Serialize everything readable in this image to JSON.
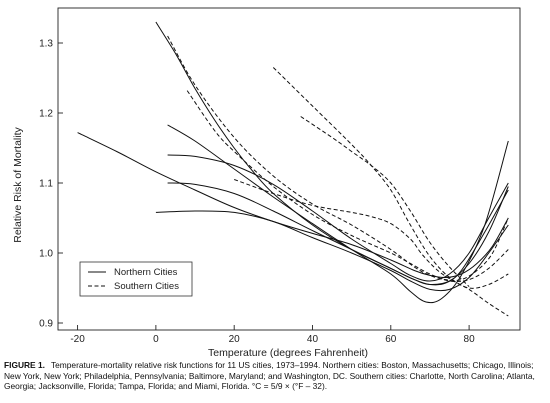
{
  "chart_data": {
    "type": "line",
    "xlabel": "Temperature (degrees Fahrenheit)",
    "ylabel": "Relative Risk of Mortality",
    "xlim": [
      -25,
      93
    ],
    "ylim": [
      0.89,
      1.35
    ],
    "xticks": [
      -20,
      0,
      20,
      40,
      60,
      80
    ],
    "yticks": [
      0.9,
      1.0,
      1.1,
      1.2,
      1.3
    ],
    "grid": false,
    "legend": {
      "placement": "lower-left",
      "entries": [
        {
          "label": "Northern Cities",
          "style": "solid"
        },
        {
          "label": "Southern Cities",
          "style": "dashed"
        }
      ]
    },
    "series": [
      {
        "group": "Northern Cities",
        "x": [
          -20,
          -10,
          0,
          10,
          20,
          30,
          40,
          50,
          60,
          66,
          70,
          74,
          78,
          82,
          86,
          90
        ],
        "y": [
          1.172,
          1.145,
          1.116,
          1.09,
          1.065,
          1.045,
          1.028,
          1.012,
          0.99,
          0.975,
          0.968,
          0.965,
          0.97,
          0.985,
          1.01,
          1.05
        ]
      },
      {
        "group": "Northern Cities",
        "x": [
          0,
          5,
          10,
          15,
          20,
          25,
          30,
          40,
          50,
          60,
          66,
          70,
          74,
          78,
          84,
          90
        ],
        "y": [
          1.33,
          1.285,
          1.235,
          1.19,
          1.15,
          1.115,
          1.085,
          1.04,
          1.005,
          0.978,
          0.962,
          0.955,
          0.957,
          0.975,
          1.03,
          1.09
        ]
      },
      {
        "group": "Northern Cities",
        "x": [
          3,
          10,
          20,
          30,
          40,
          50,
          60,
          65,
          70,
          75,
          80,
          85,
          90
        ],
        "y": [
          1.14,
          1.138,
          1.125,
          1.098,
          1.06,
          1.02,
          0.985,
          0.968,
          0.96,
          0.97,
          1.0,
          1.05,
          1.1
        ]
      },
      {
        "group": "Northern Cities",
        "x": [
          3,
          10,
          20,
          30,
          40,
          50,
          60,
          66,
          70,
          75,
          80,
          85,
          90
        ],
        "y": [
          1.1,
          1.098,
          1.085,
          1.06,
          1.032,
          1.005,
          0.978,
          0.962,
          0.955,
          0.96,
          0.985,
          1.03,
          1.095
        ]
      },
      {
        "group": "Northern Cities",
        "x": [
          0,
          10,
          20,
          30,
          40,
          50,
          60,
          65,
          70,
          75,
          80,
          85,
          90
        ],
        "y": [
          1.058,
          1.06,
          1.058,
          1.045,
          1.022,
          1.0,
          0.975,
          0.96,
          0.948,
          0.948,
          0.965,
          1.0,
          1.04
        ]
      },
      {
        "group": "Northern Cities",
        "x": [
          3,
          10,
          20,
          30,
          40,
          50,
          60,
          65,
          69,
          73,
          78,
          84,
          90
        ],
        "y": [
          1.183,
          1.16,
          1.12,
          1.08,
          1.042,
          1.005,
          0.97,
          0.945,
          0.93,
          0.935,
          0.968,
          1.04,
          1.16
        ]
      },
      {
        "group": "Southern Cities",
        "x": [
          3,
          10,
          20,
          30,
          40,
          50,
          60,
          66,
          70,
          74,
          78,
          82,
          86,
          90
        ],
        "y": [
          1.31,
          1.24,
          1.165,
          1.11,
          1.07,
          1.04,
          1.005,
          0.98,
          0.968,
          0.962,
          0.962,
          0.975,
          1.0,
          1.05
        ]
      },
      {
        "group": "Southern Cities",
        "x": [
          8,
          15,
          20,
          30,
          40,
          50,
          60,
          65,
          70,
          75,
          80,
          85,
          90
        ],
        "y": [
          1.232,
          1.175,
          1.145,
          1.095,
          1.055,
          1.025,
          1.0,
          0.985,
          0.97,
          0.96,
          0.962,
          0.978,
          1.005
        ]
      },
      {
        "group": "Southern Cities",
        "x": [
          30,
          40,
          50,
          55,
          60,
          65,
          70,
          75,
          80,
          85,
          90
        ],
        "y": [
          1.265,
          1.21,
          1.155,
          1.125,
          1.09,
          1.04,
          0.995,
          0.965,
          0.95,
          0.955,
          0.97
        ]
      },
      {
        "group": "Southern Cities",
        "x": [
          37,
          45,
          50,
          55,
          60,
          65,
          70,
          75,
          80
        ],
        "y": [
          1.195,
          1.165,
          1.145,
          1.125,
          1.1,
          1.06,
          1.015,
          0.98,
          0.952
        ]
      },
      {
        "group": "Southern Cities",
        "x": [
          20,
          30,
          40,
          50,
          55,
          60,
          65,
          68,
          72,
          76,
          80,
          85,
          90
        ],
        "y": [
          1.105,
          1.085,
          1.068,
          1.058,
          1.052,
          1.042,
          1.02,
          0.998,
          0.975,
          0.96,
          0.948,
          0.928,
          0.91
        ]
      }
    ]
  },
  "caption": {
    "label": "FIGURE 1.",
    "text": "Temperature-mortality relative risk functions for 11 US cities, 1973–1994. Northern cities: Boston, Massachusetts; Chicago, Illinois; New York, New York; Philadelphia, Pennsylvania; Baltimore, Maryland; and Washington, DC. Southern cities: Charlotte, North Carolina; Atlanta, Georgia; Jacksonville, Florida; Tampa, Florida; and Miami, Florida. °C = 5/9 × (°F – 32)."
  }
}
